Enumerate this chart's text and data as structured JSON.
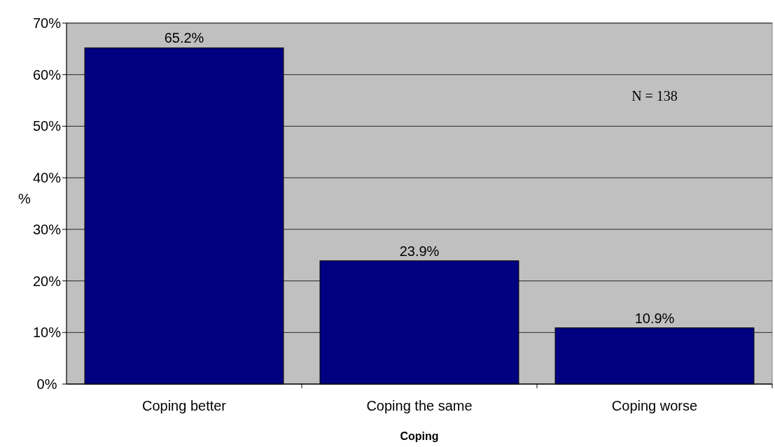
{
  "chart_data": {
    "type": "bar",
    "xlabel": "Coping",
    "ylabel": "%",
    "categories": [
      "Coping better",
      "Coping the same",
      "Coping worse"
    ],
    "values": [
      65.2,
      23.9,
      10.9
    ],
    "color": "#000080",
    "value_labels": [
      "65.2%",
      "23.9%",
      "10.9%"
    ],
    "ylim": [
      0,
      70
    ],
    "yticks": [
      {
        "value": 0,
        "label": "0%"
      },
      {
        "value": 10,
        "label": "10%"
      },
      {
        "value": 20,
        "label": "20%"
      },
      {
        "value": 30,
        "label": "30%"
      },
      {
        "value": 40,
        "label": "40%"
      },
      {
        "value": 50,
        "label": "50%"
      },
      {
        "value": 60,
        "label": "60%"
      },
      {
        "value": 70,
        "label": "70%"
      }
    ],
    "grid": "y",
    "annotations": [
      "N = 138"
    ]
  }
}
